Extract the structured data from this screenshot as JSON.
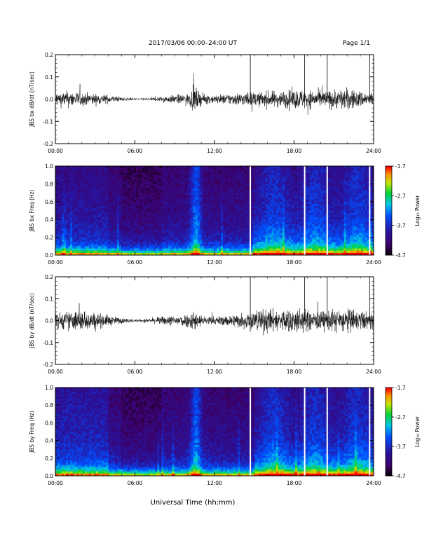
{
  "header": {
    "title": "2017/03/06  00:00–24:00 UT",
    "page": "Page 1/1"
  },
  "footer": {
    "xlabel": "Universal Time (hh:mm)"
  },
  "colorbar": {
    "label": "Log₁₀ Power",
    "ticks": [
      "-1.7",
      "-2.7",
      "-3.7",
      "-4.7"
    ],
    "range": [
      -4.7,
      -1.7
    ]
  },
  "chart_data": [
    {
      "type": "line",
      "title": "",
      "ylabel": "JBS bx dB/dt (nT/sec)",
      "xlabel": "",
      "x_range": [
        "00:00",
        "24:00"
      ],
      "x_ticks": [
        "00:00",
        "06:00",
        "12:00",
        "18:00",
        "24:00"
      ],
      "ylim": [
        -0.2,
        0.2
      ],
      "y_ticks": [
        "0.2",
        "0.1",
        "0.0",
        "-0.1",
        "-0.2"
      ],
      "envelope_hours": [
        0,
        1,
        2,
        3,
        4,
        5,
        6,
        7,
        8,
        9,
        10,
        10.5,
        11,
        12,
        13,
        14,
        15,
        16,
        17,
        18,
        19,
        20,
        21,
        22,
        23,
        24
      ],
      "envelope_amplitude": [
        0.05,
        0.06,
        0.05,
        0.04,
        0.03,
        0.015,
        0.008,
        0.01,
        0.02,
        0.03,
        0.04,
        0.09,
        0.04,
        0.03,
        0.04,
        0.05,
        0.05,
        0.06,
        0.06,
        0.07,
        0.07,
        0.06,
        0.07,
        0.08,
        0.06,
        0.05
      ],
      "spikes": [
        {
          "x": 14.7,
          "y": 0.2
        },
        {
          "x": 18.8,
          "y": 0.2
        },
        {
          "x": 20.5,
          "y": 0.2
        },
        {
          "x": 23.7,
          "y": 0.2
        }
      ]
    },
    {
      "type": "heatmap",
      "title": "",
      "ylabel": "JBS bx Freq (Hz)",
      "x_range": [
        "00:00",
        "24:00"
      ],
      "x_ticks": [
        "00:00",
        "06:00",
        "12:00",
        "18:00",
        "24:00"
      ],
      "ylim": [
        0,
        1.0
      ],
      "y_ticks": [
        "1.0",
        "0.8",
        "0.6",
        "0.4",
        "0.2",
        "0.0"
      ],
      "colorbar_range": [
        -4.7,
        -1.7
      ],
      "gaps_hours": [
        14.7,
        18.8,
        20.5,
        23.7
      ]
    },
    {
      "type": "line",
      "title": "",
      "ylabel": "JBS by dB/dt (nT/sec)",
      "xlabel": "",
      "x_range": [
        "00:00",
        "24:00"
      ],
      "x_ticks": [
        "00:00",
        "06:00",
        "12:00",
        "18:00",
        "24:00"
      ],
      "ylim": [
        -0.2,
        0.2
      ],
      "y_ticks": [
        "0.2",
        "0.1",
        "0.0",
        "-0.1",
        "-0.2"
      ],
      "envelope_hours": [
        0,
        1,
        2,
        3,
        4,
        5,
        6,
        7,
        8,
        9,
        10,
        10.5,
        11,
        12,
        13,
        14,
        15,
        16,
        17,
        18,
        19,
        20,
        21,
        22,
        23,
        24
      ],
      "envelope_amplitude": [
        0.06,
        0.07,
        0.08,
        0.06,
        0.04,
        0.02,
        0.01,
        0.015,
        0.03,
        0.04,
        0.05,
        0.08,
        0.04,
        0.03,
        0.04,
        0.06,
        0.08,
        0.09,
        0.08,
        0.1,
        0.08,
        0.07,
        0.08,
        0.09,
        0.07,
        0.06
      ],
      "spikes": [
        {
          "x": 14.7,
          "y": 0.2
        },
        {
          "x": 18.8,
          "y": 0.2
        },
        {
          "x": 20.5,
          "y": 0.2
        },
        {
          "x": 23.7,
          "y": 0.2
        }
      ]
    },
    {
      "type": "heatmap",
      "title": "",
      "ylabel": "JBS by Freq (Hz)",
      "x_range": [
        "00:00",
        "24:00"
      ],
      "x_ticks": [
        "00:00",
        "06:00",
        "12:00",
        "18:00",
        "24:00"
      ],
      "ylim": [
        0,
        1.0
      ],
      "y_ticks": [
        "1.0",
        "0.8",
        "0.6",
        "0.4",
        "0.2",
        "0.0"
      ],
      "colorbar_range": [
        -4.7,
        -1.7
      ],
      "gaps_hours": [
        14.7,
        18.8,
        20.5,
        23.7
      ]
    }
  ]
}
